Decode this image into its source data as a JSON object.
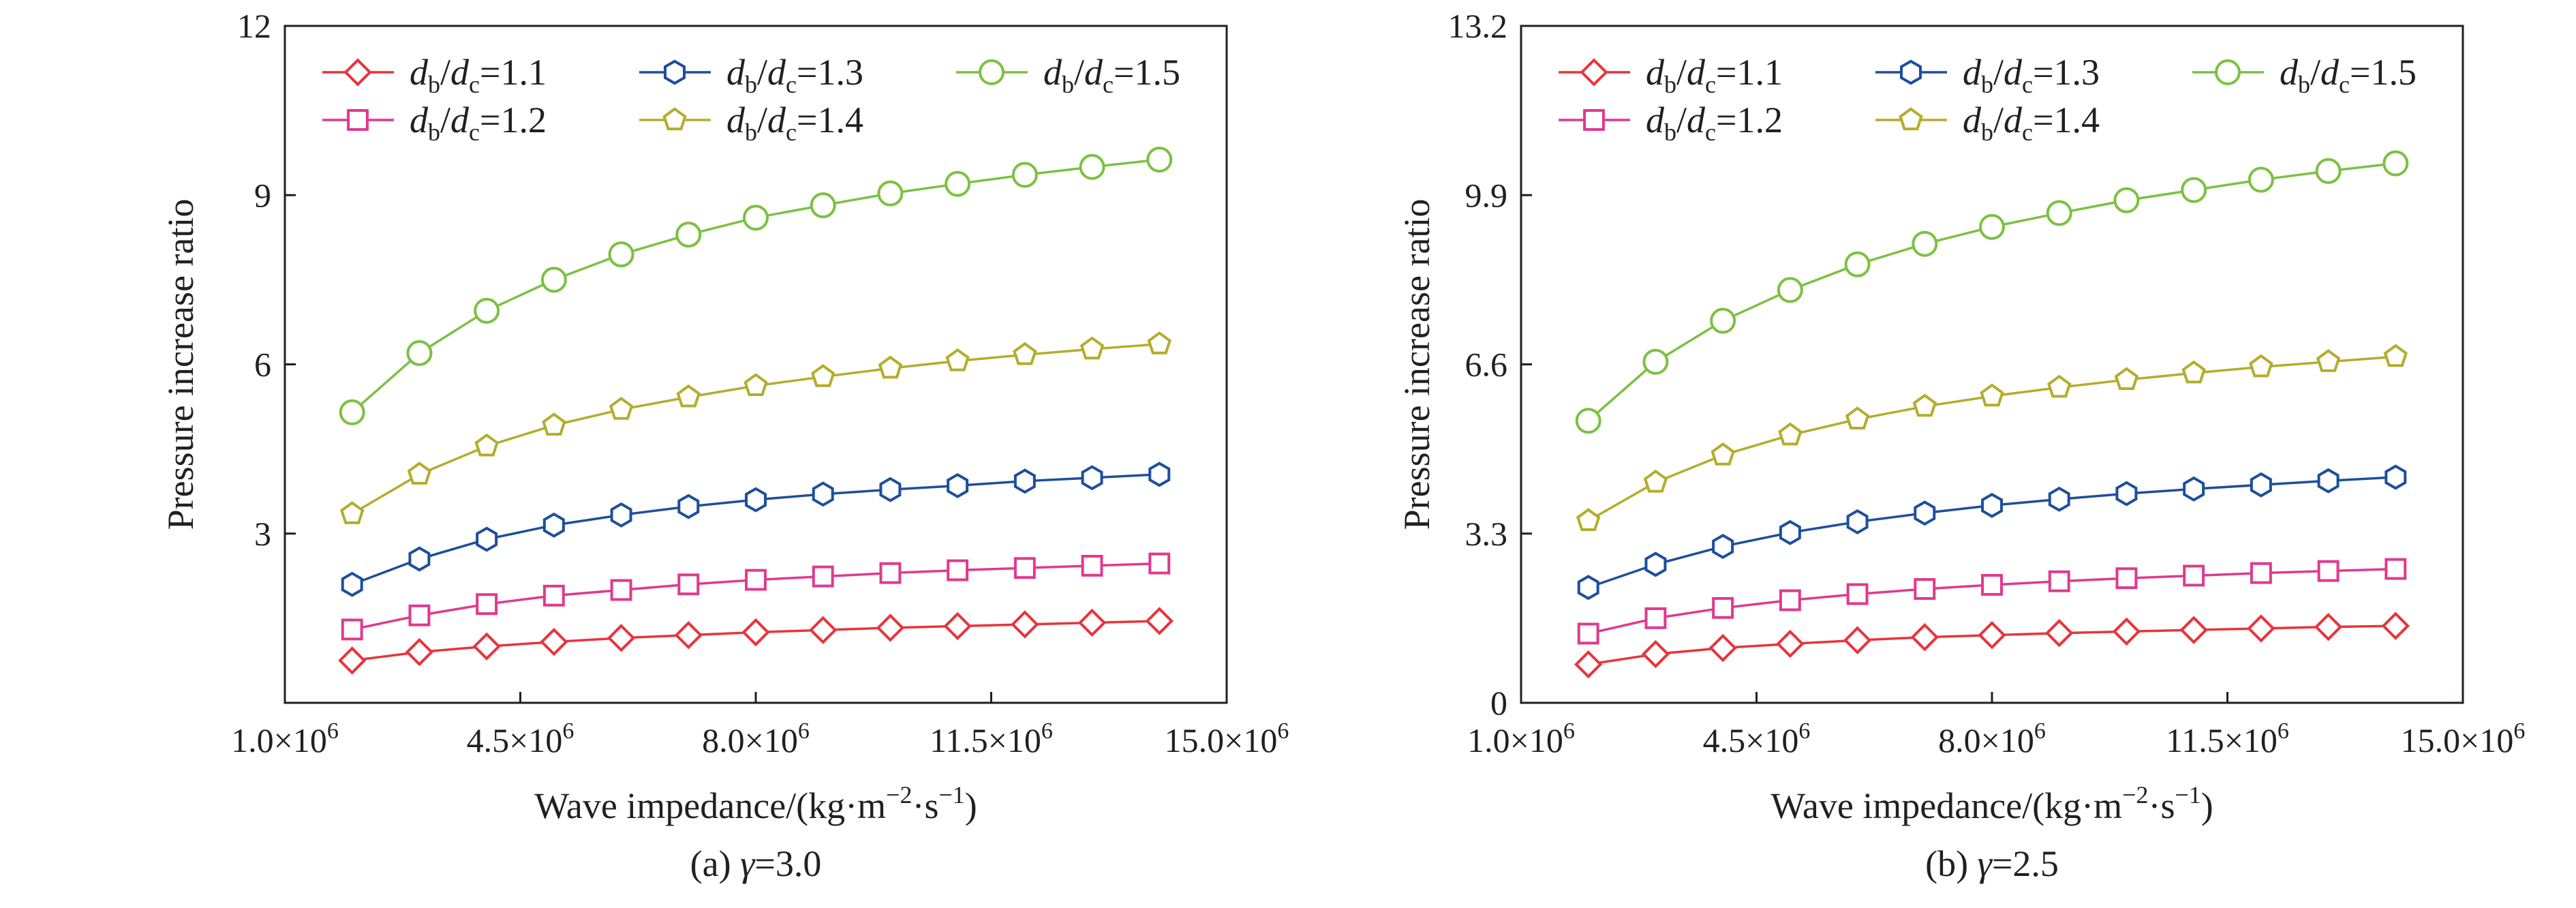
{
  "chart_data": [
    {
      "type": "line",
      "title": "",
      "caption": "(a) γ=3.0",
      "caption_prefix": "(a) ",
      "caption_symbol": "γ",
      "caption_value": "=3.0",
      "xlabel": "Wave impedance/(kg·m⁻²·s⁻¹)",
      "xlabel_main": "Wave impedance/(kg·m",
      "xlabel_sup1": "−2",
      "xlabel_mid": "·s",
      "xlabel_sup2": "−1",
      "xlabel_end": ")",
      "ylabel": "Pressure increase ratio",
      "xlim": [
        1000000,
        15000000
      ],
      "ylim": [
        0,
        12
      ],
      "x_ticks": [
        {
          "value": 1000000,
          "mant": "1.0×10",
          "exp": "6"
        },
        {
          "value": 4500000,
          "mant": "4.5×10",
          "exp": "6"
        },
        {
          "value": 8000000,
          "mant": "8.0×10",
          "exp": "6"
        },
        {
          "value": 11500000,
          "mant": "11.5×10",
          "exp": "6"
        },
        {
          "value": 15000000,
          "mant": "15.0×10",
          "exp": "6"
        }
      ],
      "y_ticks": [
        {
          "value": 0,
          "label": ""
        },
        {
          "value": 3,
          "label": "3"
        },
        {
          "value": 6,
          "label": "6"
        },
        {
          "value": 9,
          "label": "9"
        },
        {
          "value": 12,
          "label": "12"
        }
      ],
      "grid": false,
      "legend_position": "top",
      "x": [
        2000000,
        3000000,
        4000000,
        5000000,
        6000000,
        7000000,
        8000000,
        9000000,
        10000000,
        11000000,
        12000000,
        13000000,
        14000000
      ],
      "series": [
        {
          "name": "db/dc=1.1",
          "ratio": "1.1",
          "marker": "diamond",
          "color": "#e8343c",
          "values": [
            0.75,
            0.9,
            1.0,
            1.08,
            1.15,
            1.2,
            1.25,
            1.29,
            1.33,
            1.36,
            1.39,
            1.42,
            1.45
          ]
        },
        {
          "name": "db/dc=1.2",
          "ratio": "1.2",
          "marker": "square",
          "color": "#e0398f",
          "values": [
            1.3,
            1.55,
            1.75,
            1.9,
            2.0,
            2.1,
            2.18,
            2.24,
            2.3,
            2.35,
            2.39,
            2.43,
            2.47
          ]
        },
        {
          "name": "db/dc=1.3",
          "ratio": "1.3",
          "marker": "hexagon",
          "color": "#1d4f9c",
          "values": [
            2.1,
            2.55,
            2.9,
            3.15,
            3.33,
            3.48,
            3.6,
            3.7,
            3.78,
            3.85,
            3.93,
            3.99,
            4.05
          ]
        },
        {
          "name": "db/dc=1.4",
          "ratio": "1.4",
          "marker": "pentagon",
          "color": "#b3ad2c",
          "values": [
            3.35,
            4.05,
            4.55,
            4.92,
            5.2,
            5.42,
            5.62,
            5.78,
            5.93,
            6.06,
            6.17,
            6.27,
            6.36
          ]
        },
        {
          "name": "db/dc=1.5",
          "ratio": "1.5",
          "marker": "circle",
          "color": "#7cc142",
          "values": [
            5.15,
            6.2,
            6.95,
            7.5,
            7.95,
            8.3,
            8.6,
            8.82,
            9.03,
            9.2,
            9.36,
            9.5,
            9.63
          ]
        }
      ]
    },
    {
      "type": "line",
      "title": "",
      "caption": "(b) γ=2.5",
      "caption_prefix": "(b) ",
      "caption_symbol": "γ",
      "caption_value": "=2.5",
      "xlabel": "Wave impedance/(kg·m⁻²·s⁻¹)",
      "xlabel_main": "Wave impedance/(kg·m",
      "xlabel_sup1": "−2",
      "xlabel_mid": "·s",
      "xlabel_sup2": "−1",
      "xlabel_end": ")",
      "ylabel": "Pressure increase ratio",
      "xlim": [
        1000000,
        15000000
      ],
      "ylim": [
        0,
        13.2
      ],
      "x_ticks": [
        {
          "value": 1000000,
          "mant": "1.0×10",
          "exp": "6"
        },
        {
          "value": 4500000,
          "mant": "4.5×10",
          "exp": "6"
        },
        {
          "value": 8000000,
          "mant": "8.0×10",
          "exp": "6"
        },
        {
          "value": 11500000,
          "mant": "11.5×10",
          "exp": "6"
        },
        {
          "value": 15000000,
          "mant": "15.0×10",
          "exp": "6"
        }
      ],
      "y_ticks": [
        {
          "value": 0,
          "label": "0"
        },
        {
          "value": 3.3,
          "label": "3.3"
        },
        {
          "value": 6.6,
          "label": "6.6"
        },
        {
          "value": 9.9,
          "label": "9.9"
        },
        {
          "value": 13.2,
          "label": "13.2"
        }
      ],
      "grid": false,
      "legend_position": "top",
      "x": [
        2000000,
        3000000,
        4000000,
        5000000,
        6000000,
        7000000,
        8000000,
        9000000,
        10000000,
        11000000,
        12000000,
        13000000,
        14000000
      ],
      "series": [
        {
          "name": "db/dc=1.1",
          "ratio": "1.1",
          "marker": "diamond",
          "color": "#e8343c",
          "values": [
            0.75,
            0.95,
            1.07,
            1.15,
            1.22,
            1.28,
            1.32,
            1.36,
            1.39,
            1.42,
            1.45,
            1.48,
            1.5
          ]
        },
        {
          "name": "db/dc=1.2",
          "ratio": "1.2",
          "marker": "square",
          "color": "#e0398f",
          "values": [
            1.35,
            1.65,
            1.85,
            2.0,
            2.12,
            2.22,
            2.3,
            2.37,
            2.43,
            2.48,
            2.53,
            2.57,
            2.61
          ]
        },
        {
          "name": "db/dc=1.3",
          "ratio": "1.3",
          "marker": "hexagon",
          "color": "#1d4f9c",
          "values": [
            2.25,
            2.7,
            3.05,
            3.32,
            3.53,
            3.7,
            3.85,
            3.97,
            4.08,
            4.17,
            4.25,
            4.33,
            4.4
          ]
        },
        {
          "name": "db/dc=1.4",
          "ratio": "1.4",
          "marker": "pentagon",
          "color": "#b3ad2c",
          "values": [
            3.55,
            4.3,
            4.83,
            5.22,
            5.53,
            5.78,
            5.98,
            6.15,
            6.3,
            6.43,
            6.55,
            6.65,
            6.75
          ]
        },
        {
          "name": "db/dc=1.5",
          "ratio": "1.5",
          "marker": "circle",
          "color": "#7cc142",
          "values": [
            5.5,
            6.65,
            7.45,
            8.05,
            8.55,
            8.95,
            9.28,
            9.55,
            9.8,
            10.0,
            10.2,
            10.37,
            10.52
          ]
        }
      ]
    }
  ]
}
